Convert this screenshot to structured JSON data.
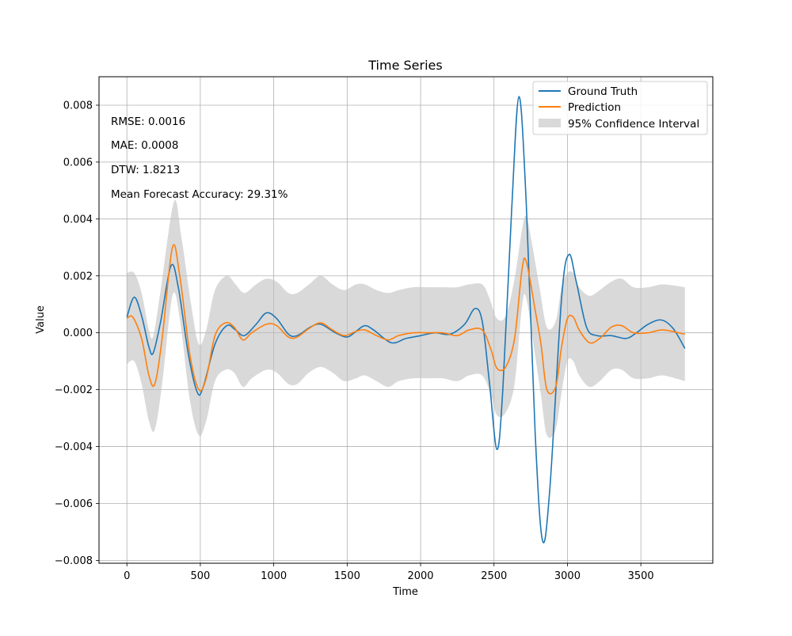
{
  "chart_data": {
    "type": "line",
    "title": "Time Series",
    "xlabel": "Time",
    "ylabel": "Value",
    "xlim": [
      -190,
      3990
    ],
    "ylim": [
      -0.0081,
      0.009
    ],
    "x_ticks": [
      0,
      500,
      1000,
      1500,
      2000,
      2500,
      3000,
      3500
    ],
    "x_tick_labels": [
      "0",
      "500",
      "1000",
      "1500",
      "2000",
      "2500",
      "3000",
      "3500"
    ],
    "y_ticks": [
      -0.008,
      -0.006,
      -0.004,
      -0.002,
      0.0,
      0.002,
      0.004,
      0.006,
      0.008
    ],
    "y_tick_labels": [
      "−0.008",
      "−0.006",
      "−0.004",
      "−0.002",
      "0.000",
      "0.002",
      "0.004",
      "0.006",
      "0.008"
    ],
    "grid": true,
    "legend_position": "top-right",
    "metrics": [
      "RMSE: 0.0016",
      "MAE: 0.0008",
      "DTW: 1.8213",
      "Mean Forecast Accuracy: 29.31%"
    ],
    "series": [
      {
        "name": "Ground Truth",
        "color": "#1f77b4",
        "points": [
          [
            0,
            0.00055
          ],
          [
            50,
            0.00125
          ],
          [
            100,
            0.0006
          ],
          [
            150,
            -0.0005
          ],
          [
            180,
            -0.0007
          ],
          [
            230,
            0.0004
          ],
          [
            300,
            0.00235
          ],
          [
            350,
            0.0016
          ],
          [
            420,
            -0.0008
          ],
          [
            480,
            -0.0021
          ],
          [
            520,
            -0.0019
          ],
          [
            600,
            -0.0004
          ],
          [
            680,
            0.00025
          ],
          [
            740,
            0.0001
          ],
          [
            800,
            -0.0001
          ],
          [
            880,
            0.0003
          ],
          [
            950,
            0.0007
          ],
          [
            1020,
            0.0005
          ],
          [
            1100,
            -5e-05
          ],
          [
            1160,
            -0.0001
          ],
          [
            1250,
            0.0002
          ],
          [
            1320,
            0.0003
          ],
          [
            1420,
            0.0
          ],
          [
            1500,
            -0.00015
          ],
          [
            1560,
            5e-05
          ],
          [
            1620,
            0.00025
          ],
          [
            1680,
            0.0001
          ],
          [
            1800,
            -0.00035
          ],
          [
            1900,
            -0.0002
          ],
          [
            2000,
            -0.0001
          ],
          [
            2100,
            0.0
          ],
          [
            2200,
            -5e-05
          ],
          [
            2300,
            0.0003
          ],
          [
            2370,
            0.00085
          ],
          [
            2420,
            0.0004
          ],
          [
            2470,
            -0.0018
          ],
          [
            2520,
            -0.0041
          ],
          [
            2560,
            -0.002
          ],
          [
            2620,
            0.0043
          ],
          [
            2670,
            0.0083
          ],
          [
            2720,
            0.0045
          ],
          [
            2780,
            -0.0035
          ],
          [
            2830,
            -0.0073
          ],
          [
            2880,
            -0.0055
          ],
          [
            2960,
            0.0012
          ],
          [
            3010,
            0.00275
          ],
          [
            3060,
            0.0018
          ],
          [
            3130,
            0.0002
          ],
          [
            3200,
            -0.0001
          ],
          [
            3300,
            -0.0001
          ],
          [
            3400,
            -0.0002
          ],
          [
            3470,
            0.0
          ],
          [
            3550,
            0.0003
          ],
          [
            3640,
            0.00045
          ],
          [
            3720,
            0.00015
          ],
          [
            3800,
            -0.00055
          ]
        ]
      },
      {
        "name": "Prediction",
        "color": "#ff7f0e",
        "points": [
          [
            0,
            0.0005
          ],
          [
            40,
            0.00055
          ],
          [
            100,
            -0.0002
          ],
          [
            150,
            -0.0015
          ],
          [
            190,
            -0.0018
          ],
          [
            240,
            -0.0002
          ],
          [
            310,
            0.003
          ],
          [
            360,
            0.002
          ],
          [
            430,
            -0.0008
          ],
          [
            490,
            -0.002
          ],
          [
            540,
            -0.0016
          ],
          [
            600,
            -0.0001
          ],
          [
            670,
            0.00035
          ],
          [
            730,
            0.0002
          ],
          [
            790,
            -0.00025
          ],
          [
            850,
            0.0
          ],
          [
            950,
            0.0003
          ],
          [
            1020,
            0.00025
          ],
          [
            1100,
            -0.00015
          ],
          [
            1160,
            -0.00015
          ],
          [
            1240,
            0.00015
          ],
          [
            1320,
            0.00035
          ],
          [
            1400,
            0.0001
          ],
          [
            1480,
            -0.0001
          ],
          [
            1560,
            5e-05
          ],
          [
            1620,
            0.0001
          ],
          [
            1700,
            -0.0001
          ],
          [
            1780,
            -0.00025
          ],
          [
            1850,
            -0.0001
          ],
          [
            1950,
            0.0
          ],
          [
            2050,
            0.0
          ],
          [
            2150,
            0.0
          ],
          [
            2250,
            -0.0001
          ],
          [
            2330,
            0.0001
          ],
          [
            2420,
            0.0001
          ],
          [
            2480,
            -0.0006
          ],
          [
            2520,
            -0.00125
          ],
          [
            2580,
            -0.0012
          ],
          [
            2640,
            -0.0002
          ],
          [
            2690,
            0.0022
          ],
          [
            2720,
            0.0025
          ],
          [
            2780,
            0.0008
          ],
          [
            2820,
            -0.0004
          ],
          [
            2860,
            -0.002
          ],
          [
            2920,
            -0.0019
          ],
          [
            2960,
            -0.0005
          ],
          [
            3000,
            0.0005
          ],
          [
            3040,
            0.00055
          ],
          [
            3080,
            0.0001
          ],
          [
            3150,
            -0.00035
          ],
          [
            3220,
            -0.0002
          ],
          [
            3300,
            0.0002
          ],
          [
            3370,
            0.00025
          ],
          [
            3450,
            0.0
          ],
          [
            3550,
            0.0
          ],
          [
            3650,
            0.0001
          ],
          [
            3800,
            -5e-05
          ]
        ]
      }
    ],
    "band": {
      "name": "95% Confidence Interval",
      "color": "#bfbfbf",
      "upper": [
        [
          0,
          0.0021
        ],
        [
          50,
          0.0021
        ],
        [
          100,
          0.0014
        ],
        [
          150,
          0.0001
        ],
        [
          180,
          -0.0001
        ],
        [
          230,
          0.0015
        ],
        [
          320,
          0.0046
        ],
        [
          370,
          0.0034
        ],
        [
          440,
          0.0009
        ],
        [
          490,
          -0.0004
        ],
        [
          540,
          0.0001
        ],
        [
          600,
          0.0015
        ],
        [
          680,
          0.002
        ],
        [
          740,
          0.0017
        ],
        [
          800,
          0.0014
        ],
        [
          880,
          0.0017
        ],
        [
          950,
          0.0019
        ],
        [
          1020,
          0.0018
        ],
        [
          1100,
          0.0014
        ],
        [
          1160,
          0.0014
        ],
        [
          1240,
          0.0017
        ],
        [
          1320,
          0.002
        ],
        [
          1400,
          0.0017
        ],
        [
          1480,
          0.0015
        ],
        [
          1560,
          0.0017
        ],
        [
          1620,
          0.0017
        ],
        [
          1700,
          0.0015
        ],
        [
          1780,
          0.0014
        ],
        [
          1850,
          0.0015
        ],
        [
          1950,
          0.0016
        ],
        [
          2050,
          0.0016
        ],
        [
          2150,
          0.0016
        ],
        [
          2250,
          0.0016
        ],
        [
          2330,
          0.0017
        ],
        [
          2420,
          0.0017
        ],
        [
          2470,
          0.0012
        ],
        [
          2520,
          0.0005
        ],
        [
          2580,
          0.0006
        ],
        [
          2640,
          0.0019
        ],
        [
          2690,
          0.0036
        ],
        [
          2720,
          0.0041
        ],
        [
          2760,
          0.0031
        ],
        [
          2810,
          0.0016
        ],
        [
          2860,
          0.0002
        ],
        [
          2920,
          0.0004
        ],
        [
          2960,
          0.0016
        ],
        [
          3000,
          0.0021
        ],
        [
          3040,
          0.0021
        ],
        [
          3080,
          0.0016
        ],
        [
          3150,
          0.0013
        ],
        [
          3220,
          0.0015
        ],
        [
          3300,
          0.0018
        ],
        [
          3370,
          0.0019
        ],
        [
          3450,
          0.0016
        ],
        [
          3550,
          0.0016
        ],
        [
          3650,
          0.0017
        ],
        [
          3800,
          0.0016
        ]
      ],
      "lower": [
        [
          0,
          -0.0011
        ],
        [
          50,
          -0.001
        ],
        [
          100,
          -0.0018
        ],
        [
          150,
          -0.0031
        ],
        [
          190,
          -0.0034
        ],
        [
          240,
          -0.0018
        ],
        [
          310,
          0.0013
        ],
        [
          360,
          0.0005
        ],
        [
          430,
          -0.0024
        ],
        [
          490,
          -0.0036
        ],
        [
          540,
          -0.0031
        ],
        [
          600,
          -0.0017
        ],
        [
          670,
          -0.0013
        ],
        [
          730,
          -0.0014
        ],
        [
          790,
          -0.0019
        ],
        [
          850,
          -0.0016
        ],
        [
          950,
          -0.0013
        ],
        [
          1020,
          -0.0014
        ],
        [
          1100,
          -0.0018
        ],
        [
          1160,
          -0.0018
        ],
        [
          1240,
          -0.0014
        ],
        [
          1320,
          -0.0012
        ],
        [
          1400,
          -0.0014
        ],
        [
          1480,
          -0.0017
        ],
        [
          1560,
          -0.0016
        ],
        [
          1620,
          -0.0015
        ],
        [
          1700,
          -0.0017
        ],
        [
          1780,
          -0.0019
        ],
        [
          1850,
          -0.0017
        ],
        [
          1950,
          -0.0016
        ],
        [
          2050,
          -0.0016
        ],
        [
          2150,
          -0.0016
        ],
        [
          2250,
          -0.0017
        ],
        [
          2330,
          -0.0015
        ],
        [
          2420,
          -0.0015
        ],
        [
          2480,
          -0.0022
        ],
        [
          2520,
          -0.0029
        ],
        [
          2580,
          -0.0028
        ],
        [
          2640,
          -0.0018
        ],
        [
          2690,
          0.0009
        ],
        [
          2720,
          0.0012
        ],
        [
          2780,
          -0.0008
        ],
        [
          2820,
          -0.0022
        ],
        [
          2860,
          -0.0036
        ],
        [
          2920,
          -0.0034
        ],
        [
          2960,
          -0.0021
        ],
        [
          3000,
          -0.001
        ],
        [
          3040,
          -0.001
        ],
        [
          3080,
          -0.0015
        ],
        [
          3150,
          -0.0019
        ],
        [
          3220,
          -0.0017
        ],
        [
          3300,
          -0.0013
        ],
        [
          3370,
          -0.0013
        ],
        [
          3450,
          -0.0016
        ],
        [
          3550,
          -0.0016
        ],
        [
          3650,
          -0.0015
        ],
        [
          3800,
          -0.0017
        ]
      ]
    }
  }
}
